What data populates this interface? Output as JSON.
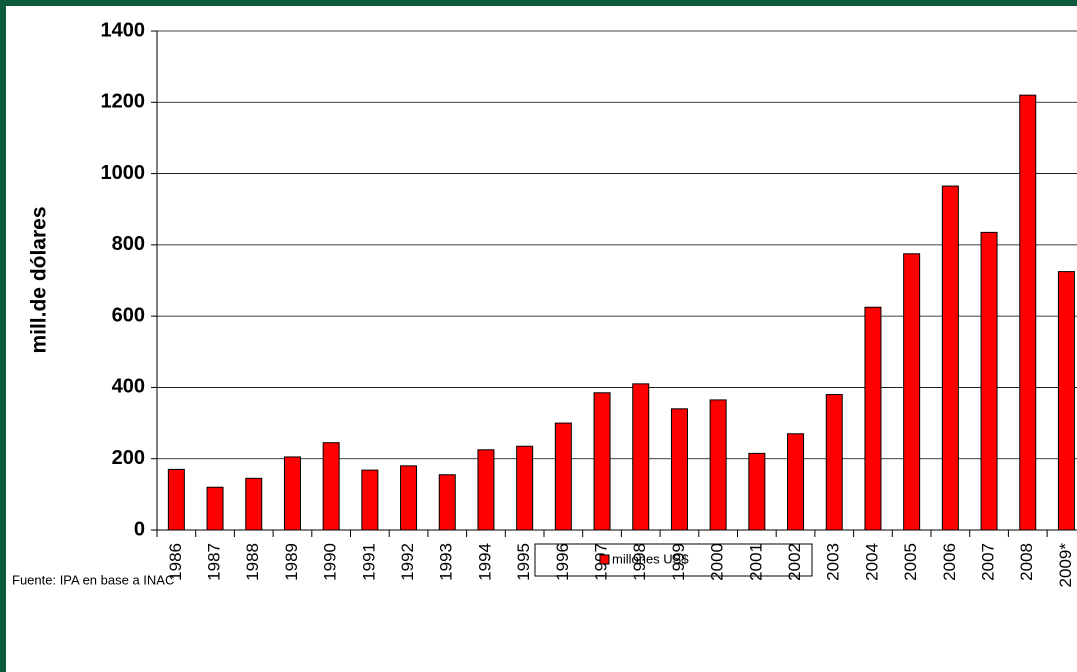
{
  "chart_data": {
    "type": "bar",
    "y_label": "mill.de dólares",
    "note": "Fuente:  IPA en base a INAC",
    "categories": [
      "1986",
      "1987",
      "1988",
      "1989",
      "1990",
      "1991",
      "1992",
      "1993",
      "1994",
      "1995",
      "1996",
      "1997",
      "1998",
      "1999",
      "2000",
      "2001",
      "2002",
      "2003",
      "2004",
      "2005",
      "2006",
      "2007",
      "2008",
      "2009*"
    ],
    "series": [
      {
        "name": "millones US$",
        "color": "#ff0000",
        "values": [
          170,
          120,
          145,
          205,
          245,
          168,
          180,
          155,
          225,
          235,
          300,
          385,
          410,
          340,
          365,
          215,
          270,
          380,
          625,
          775,
          965,
          835,
          1220,
          725
        ]
      }
    ],
    "ylim": [
      0,
      1400
    ],
    "yticks": [
      0,
      200,
      400,
      600,
      800,
      1000,
      1200,
      1400
    ],
    "grid": true
  }
}
